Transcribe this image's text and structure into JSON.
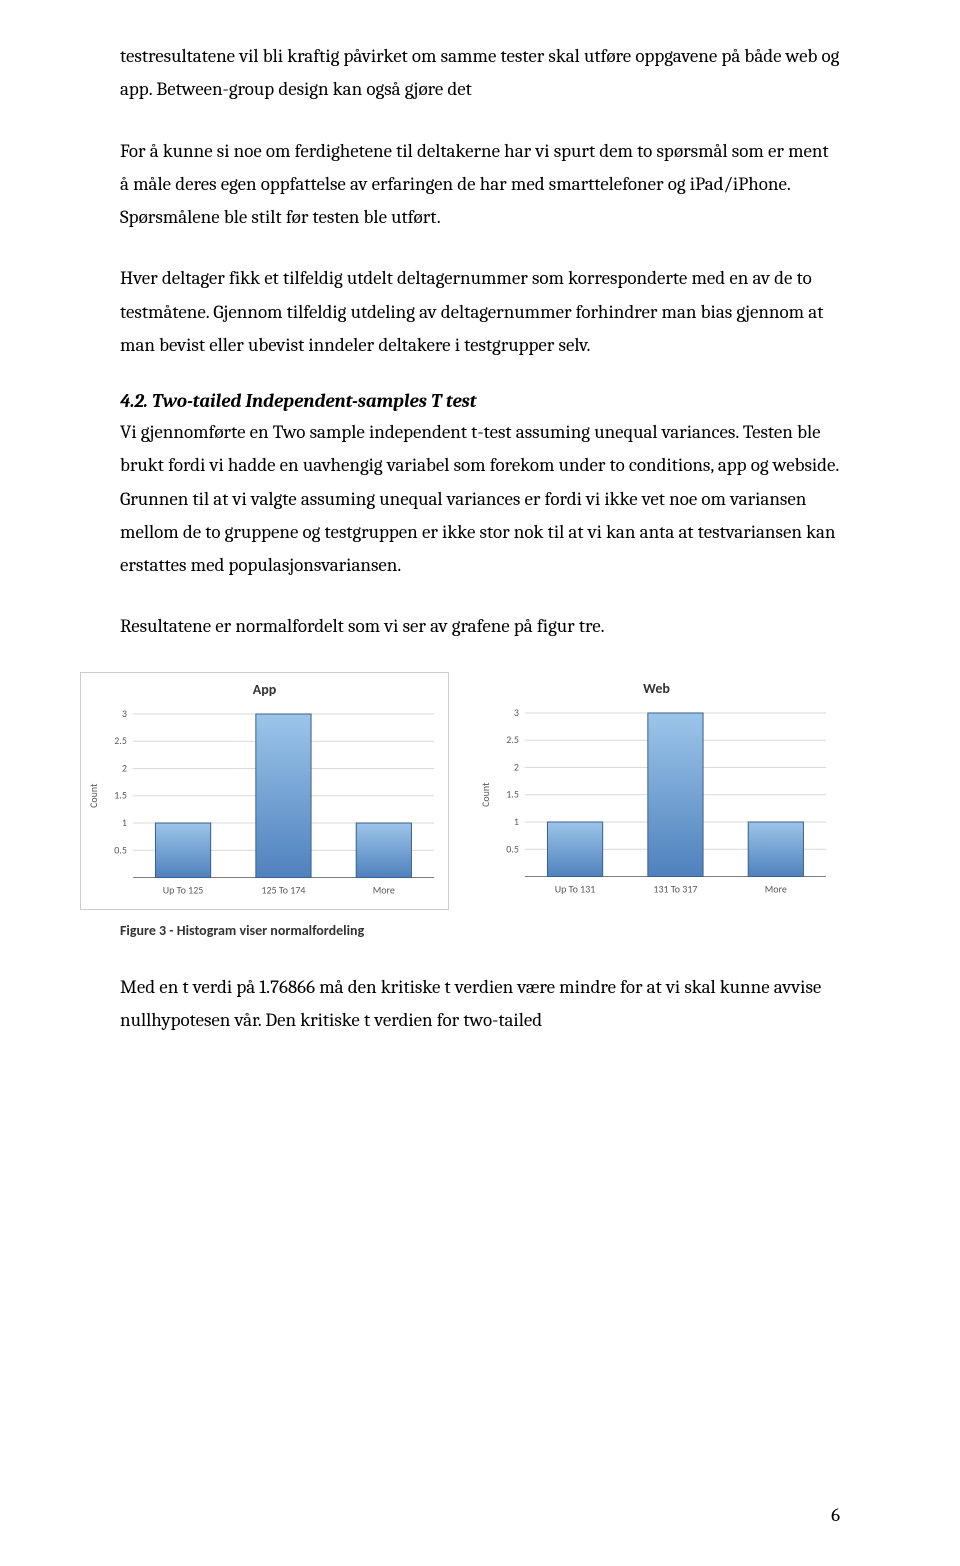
{
  "para1": "testresultatene vil bli kraftig påvirket om samme tester skal utføre oppgavene på både web og app. Between-group design kan også gjøre det",
  "para2": "For å kunne si  noe om ferdighetene til deltakerne har vi spurt dem to spørsmål som er ment å måle deres egen oppfattelse av erfaringen de har med smarttelefoner og iPad/iPhone. Spørsmålene ble stilt før testen ble utført.",
  "para3": "Hver deltager fikk et tilfeldig utdelt deltagernummer som korresponderte med en av de to testmåtene. Gjennom tilfeldig utdeling av deltagernummer forhindrer man bias gjennom at man bevist eller ubevist inndeler deltakere i testgrupper selv.",
  "heading": "4.2. Two-tailed Independent-samples T test",
  "para4": "Vi gjennomførte en Two sample independent t-test assuming unequal variances. Testen ble brukt fordi vi hadde en uavhengig variabel som forekom under to conditions, app og webside.",
  "para5": "Grunnen til at vi valgte assuming unequal variances er fordi vi ikke vet noe om variansen mellom de to gruppene og testgruppen er ikke stor nok til at vi kan anta at testvariansen kan erstattes med populasjonsvariansen.",
  "para6": "Resultatene er normalfordelt som vi ser av grafene på figur tre.",
  "caption": "Figure 3 - Histogram viser normalfordeling",
  "para7": "Med en t verdi på 1.76866 må den kritiske t verdien være mindre for at vi skal kunne avvise nullhypotesen vår. Den kritiske t verdien for two-tailed",
  "page_number": "6",
  "charts": {
    "app": {
      "type": "bar",
      "title": "App",
      "ylabel": "Count",
      "categories": [
        "Up To 125",
        "125 To 174",
        "More"
      ],
      "values": [
        1,
        3,
        1
      ],
      "ylim": [
        0,
        3
      ],
      "ytick_step": 0.5,
      "yticks": [
        0.5,
        1,
        1.5,
        2,
        2.5,
        3
      ],
      "bar_fill_top": "#9cc5e9",
      "bar_fill_bottom": "#4f81bd",
      "bar_border": "#3a5f8a",
      "grid_color": "#d9d9d9",
      "axis_color": "#808080",
      "text_color": "#595959",
      "bar_width_ratio": 0.55,
      "label_fontsize": 10
    },
    "web": {
      "type": "bar",
      "title": "Web",
      "ylabel": "Count",
      "categories": [
        "Up To 131",
        "131 To 317",
        "More"
      ],
      "values": [
        1,
        3,
        1
      ],
      "ylim": [
        0,
        3
      ],
      "ytick_step": 0.5,
      "yticks": [
        0.5,
        1,
        1.5,
        2,
        2.5,
        3
      ],
      "bar_fill_top": "#9cc5e9",
      "bar_fill_bottom": "#4f81bd",
      "bar_border": "#3a5f8a",
      "grid_color": "#d9d9d9",
      "axis_color": "#808080",
      "text_color": "#595959",
      "bar_width_ratio": 0.55,
      "label_fontsize": 10
    }
  }
}
